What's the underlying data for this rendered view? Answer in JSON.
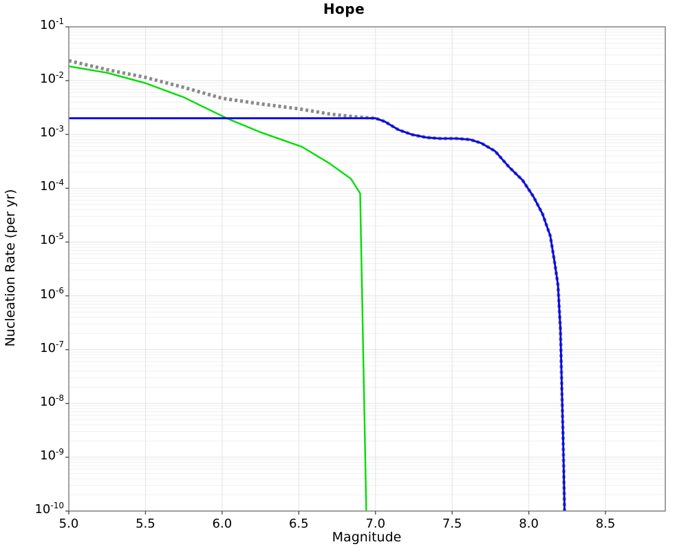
{
  "title": "Hope",
  "axes": {
    "xlabel": "Magnitude",
    "ylabel": "Nucleation Rate (per yr)"
  },
  "chart_data": {
    "type": "line",
    "title": "Hope",
    "xlabel": "Magnitude",
    "ylabel": "Nucleation Rate (per yr)",
    "grid": true,
    "legend": "none",
    "x_axis": {
      "scale": "linear",
      "min": 5.0,
      "max": 8.89,
      "ticks": [
        5.0,
        5.5,
        6.0,
        6.5,
        7.0,
        7.5,
        8.0,
        8.5
      ]
    },
    "y_axis": {
      "scale": "log",
      "min": 1e-10,
      "max": 0.1,
      "tick_exponents": [
        -1,
        -2,
        -3,
        -4,
        -5,
        -6,
        -7,
        -8,
        -9,
        -10
      ]
    },
    "series": [
      {
        "name": "dotted-gray-total-rate",
        "color": "#8a8a8a",
        "style": "dotted",
        "width": 5,
        "points": [
          [
            5.0,
            0.0235
          ],
          [
            5.25,
            0.016
          ],
          [
            5.5,
            0.0115
          ],
          [
            5.75,
            0.0075
          ],
          [
            6.0,
            0.0047
          ],
          [
            6.25,
            0.0037
          ],
          [
            6.5,
            0.003
          ],
          [
            6.7,
            0.0024
          ],
          [
            6.85,
            0.00215
          ],
          [
            7.0,
            0.002
          ],
          [
            7.06,
            0.00174
          ],
          [
            7.15,
            0.00122
          ],
          [
            7.24,
            0.00099
          ],
          [
            7.33,
            0.00088
          ],
          [
            7.42,
            0.00084
          ],
          [
            7.53,
            0.00084
          ],
          [
            7.62,
            0.0008
          ],
          [
            7.69,
            0.00069
          ],
          [
            7.78,
            0.00049
          ],
          [
            7.87,
            0.00025
          ],
          [
            7.96,
            0.00014
          ],
          [
            8.03,
            7e-05
          ],
          [
            8.09,
            3.3e-05
          ],
          [
            8.14,
            1.3e-05
          ],
          [
            8.17,
            3.9e-06
          ],
          [
            8.19,
            1.6e-06
          ],
          [
            8.206,
            2.4e-07
          ],
          [
            8.215,
            2.1e-08
          ],
          [
            8.224,
            2e-09
          ],
          [
            8.233,
            1e-10
          ]
        ]
      },
      {
        "name": "solid-green-rate",
        "color": "#00dd00",
        "style": "solid",
        "width": 2.4,
        "points": [
          [
            5.0,
            0.0185
          ],
          [
            5.25,
            0.014
          ],
          [
            5.5,
            0.009
          ],
          [
            5.75,
            0.0049
          ],
          [
            6.03,
            0.002
          ],
          [
            6.25,
            0.0011
          ],
          [
            6.52,
            0.00059
          ],
          [
            6.7,
            0.00029
          ],
          [
            6.84,
            0.00015
          ],
          [
            6.9,
            8e-05
          ],
          [
            6.94,
            1e-10
          ]
        ]
      },
      {
        "name": "solid-blue-rate",
        "color": "#0000f0",
        "style": "solid",
        "width": 2.8,
        "points": [
          [
            5.0,
            0.002
          ],
          [
            7.0,
            0.002
          ],
          [
            7.06,
            0.00174
          ],
          [
            7.15,
            0.00122
          ],
          [
            7.24,
            0.00099
          ],
          [
            7.33,
            0.00088
          ],
          [
            7.42,
            0.00084
          ],
          [
            7.53,
            0.00084
          ],
          [
            7.62,
            0.0008
          ],
          [
            7.69,
            0.00069
          ],
          [
            7.78,
            0.00049
          ],
          [
            7.87,
            0.00025
          ],
          [
            7.96,
            0.00014
          ],
          [
            8.03,
            7e-05
          ],
          [
            8.09,
            3.3e-05
          ],
          [
            8.14,
            1.3e-05
          ],
          [
            8.17,
            3.9e-06
          ],
          [
            8.19,
            1.6e-06
          ],
          [
            8.206,
            2.4e-07
          ],
          [
            8.215,
            2.1e-08
          ],
          [
            8.224,
            2e-09
          ],
          [
            8.233,
            1e-10
          ]
        ]
      }
    ],
    "colors": {
      "grid_minor": "#efefef",
      "grid_major": "#e2e2e2",
      "frame": "#898989",
      "tick": "#444444",
      "text": "#000000"
    }
  }
}
